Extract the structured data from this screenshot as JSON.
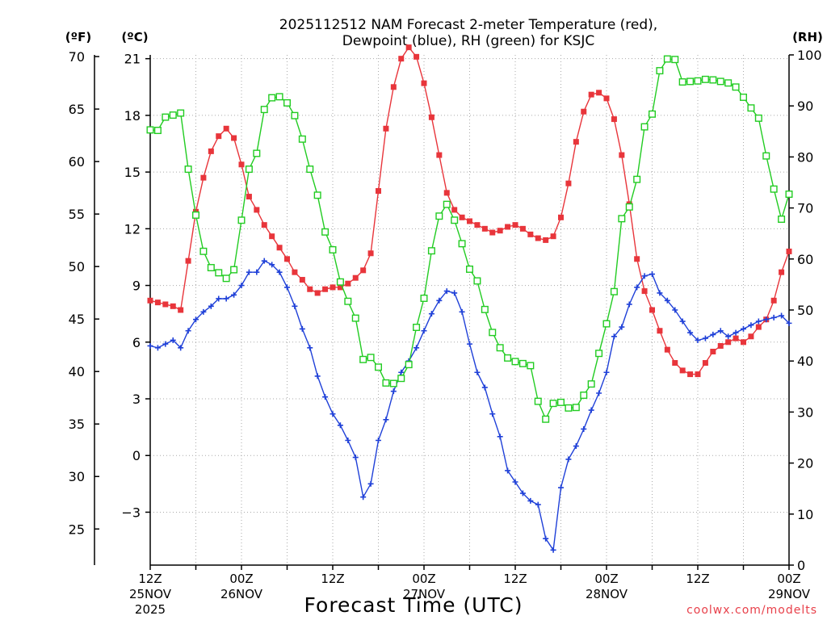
{
  "chart_data": {
    "type": "line",
    "title_line1": "2025112512 NAM Forecast 2-meter Temperature (red),",
    "title_line2": "Dewpoint (blue), RH (green) for KSJC",
    "xlabel": "Forecast Time (UTC)",
    "credit": "coolwx.com/modelts",
    "x_unit": "hours since 2025-11-25 12Z",
    "xlim": [
      0,
      84
    ],
    "ylim_c": [
      -5.8,
      21.2
    ],
    "ylim_rh": [
      0,
      100
    ],
    "units": {
      "f": "(ºF)",
      "c": "(ºC)",
      "rh": "(RH)"
    },
    "yticks_f": [
      25,
      30,
      35,
      40,
      45,
      50,
      55,
      60,
      65,
      70
    ],
    "yticks_c": [
      -3,
      0,
      3,
      6,
      9,
      12,
      15,
      18,
      21
    ],
    "yticks_rh": [
      0,
      10,
      20,
      30,
      40,
      50,
      60,
      70,
      80,
      90,
      100
    ],
    "xticks": [
      {
        "hour": 0,
        "l1": "12Z",
        "l2": "25NOV",
        "l3": "2025"
      },
      {
        "hour": 12,
        "l1": "00Z",
        "l2": "26NOV",
        "l3": ""
      },
      {
        "hour": 24,
        "l1": "12Z",
        "l2": "",
        "l3": ""
      },
      {
        "hour": 36,
        "l1": "00Z",
        "l2": "27NOV",
        "l3": ""
      },
      {
        "hour": 48,
        "l1": "12Z",
        "l2": "",
        "l3": ""
      },
      {
        "hour": 60,
        "l1": "00Z",
        "l2": "28NOV",
        "l3": ""
      },
      {
        "hour": 72,
        "l1": "12Z",
        "l2": "",
        "l3": ""
      },
      {
        "hour": 84,
        "l1": "00Z",
        "l2": "29NOV",
        "l3": ""
      }
    ],
    "x": [
      0,
      1,
      2,
      3,
      4,
      5,
      6,
      7,
      8,
      9,
      10,
      11,
      12,
      13,
      14,
      15,
      16,
      17,
      18,
      19,
      20,
      21,
      22,
      23,
      24,
      25,
      26,
      27,
      28,
      29,
      30,
      31,
      32,
      33,
      34,
      35,
      36,
      37,
      38,
      39,
      40,
      41,
      42,
      43,
      44,
      45,
      46,
      47,
      48,
      49,
      50,
      51,
      52,
      53,
      54,
      55,
      56,
      57,
      58,
      59,
      60,
      61,
      62,
      63,
      64,
      65,
      66,
      67,
      68,
      69,
      70,
      71,
      72,
      73,
      74,
      75,
      76,
      77,
      78,
      79,
      80,
      81,
      82,
      83,
      84
    ],
    "series": [
      {
        "name": "Temperature (°C)",
        "axis": "c",
        "color": "#e8353b",
        "marker": "filled-square",
        "values": [
          8.2,
          8.1,
          8.0,
          7.9,
          7.7,
          10.3,
          12.9,
          14.7,
          16.1,
          16.9,
          17.3,
          16.8,
          15.4,
          13.7,
          13.0,
          12.2,
          11.6,
          11.0,
          10.4,
          9.7,
          9.3,
          8.8,
          8.6,
          8.8,
          8.9,
          8.9,
          9.1,
          9.4,
          9.8,
          10.7,
          14.0,
          17.3,
          19.5,
          21.0,
          21.6,
          21.1,
          19.7,
          17.9,
          15.9,
          13.9,
          13.0,
          12.6,
          12.4,
          12.2,
          12.0,
          11.8,
          11.9,
          12.1,
          12.2,
          12.0,
          11.7,
          11.5,
          11.4,
          11.6,
          12.6,
          14.4,
          16.6,
          18.2,
          19.1,
          19.2,
          18.9,
          17.8,
          15.9,
          13.3,
          10.4,
          8.7,
          7.7,
          6.6,
          5.6,
          4.9,
          4.5,
          4.3,
          4.3,
          4.9,
          5.5,
          5.8,
          6.0,
          6.2,
          6.0,
          6.3,
          6.8,
          7.2,
          8.2,
          9.7,
          10.8
        ]
      },
      {
        "name": "Dewpoint (°C)",
        "axis": "c",
        "color": "#1f40d8",
        "marker": "plus",
        "values": [
          5.8,
          5.7,
          5.9,
          6.1,
          5.7,
          6.6,
          7.2,
          7.6,
          7.9,
          8.3,
          8.3,
          8.5,
          9.0,
          9.7,
          9.7,
          10.3,
          10.1,
          9.7,
          8.9,
          7.9,
          6.7,
          5.7,
          4.2,
          3.1,
          2.2,
          1.6,
          0.8,
          -0.1,
          -2.2,
          -1.5,
          0.8,
          1.9,
          3.4,
          4.4,
          5.0,
          5.7,
          6.6,
          7.5,
          8.2,
          8.7,
          8.6,
          7.6,
          5.9,
          4.4,
          3.6,
          2.2,
          1.0,
          -0.8,
          -1.4,
          -2.0,
          -2.4,
          -2.6,
          -4.4,
          -5.0,
          -1.7,
          -0.2,
          0.5,
          1.4,
          2.4,
          3.3,
          4.4,
          6.3,
          6.8,
          8.0,
          8.9,
          9.5,
          9.6,
          8.6,
          8.2,
          7.7,
          7.1,
          6.5,
          6.1,
          6.2,
          6.4,
          6.6,
          6.3,
          6.5,
          6.7,
          6.9,
          7.1,
          7.2,
          7.3,
          7.4,
          7.0
        ]
      },
      {
        "name": "RH (%)",
        "axis": "rh",
        "color": "#22cc22",
        "marker": "open-square",
        "values": [
          85.3,
          85.2,
          87.8,
          88.2,
          88.6,
          77.6,
          68.6,
          61.5,
          58.3,
          57.3,
          56.2,
          57.9,
          67.6,
          77.6,
          80.7,
          89.3,
          91.6,
          91.8,
          90.6,
          88.1,
          83.5,
          77.6,
          72.5,
          65.3,
          61.8,
          55.5,
          51.7,
          48.4,
          40.3,
          40.7,
          38.8,
          35.7,
          35.6,
          36.6,
          39.3,
          46.6,
          52.3,
          61.6,
          68.4,
          70.7,
          67.6,
          63.0,
          58.0,
          55.7,
          50.1,
          45.6,
          42.6,
          40.6,
          39.9,
          39.5,
          39.1,
          32.1,
          28.6,
          31.7,
          31.9,
          30.8,
          30.9,
          33.3,
          35.5,
          41.5,
          47.3,
          53.6,
          67.9,
          70.2,
          75.6,
          85.9,
          88.4,
          96.9,
          99.2,
          99.1,
          94.7,
          94.8,
          94.9,
          95.2,
          95.1,
          94.8,
          94.5,
          93.7,
          91.7,
          89.6,
          87.6,
          80.2,
          73.7,
          67.8,
          72.7
        ]
      }
    ]
  }
}
